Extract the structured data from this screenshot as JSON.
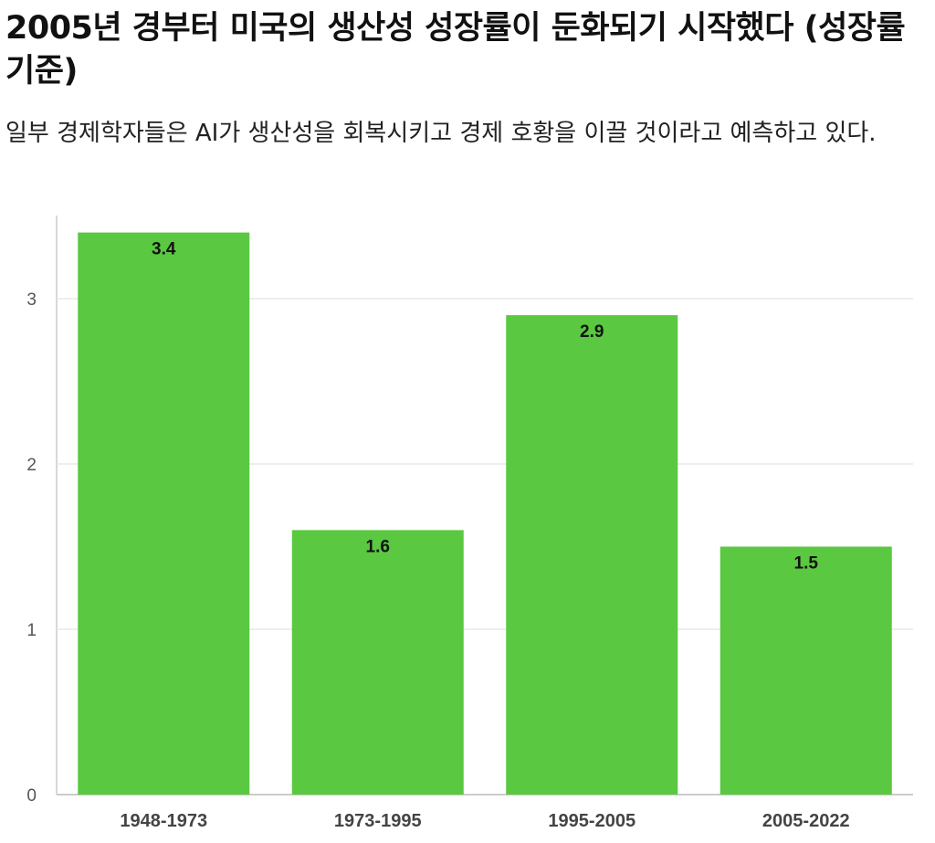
{
  "header": {
    "title": "2005년 경부터 미국의 생산성 성장률이 둔화되기 시작했다 (성장률 기준)",
    "subtitle": "일부 경제학자들은 AI가 생산성을 회복시키고 경제 호황을 이끌 것이라고 예측하고 있다."
  },
  "colors": {
    "bar": "#5ac840",
    "grid": "#e8e8e8",
    "axis": "#cccccc"
  },
  "chart_data": {
    "type": "bar",
    "categories": [
      "1948-1973",
      "1973-1995",
      "1995-2005",
      "2005-2022"
    ],
    "values": [
      3.4,
      1.6,
      2.9,
      1.5
    ],
    "value_labels": [
      "3.4",
      "1.6",
      "2.9",
      "1.5"
    ],
    "yticks": [
      0,
      1,
      2,
      3
    ],
    "ylim": [
      0,
      3.5
    ],
    "grid": true,
    "title": "2005년 경부터 미국의 생산성 성장률이 둔화되기 시작했다 (성장률 기준)",
    "xlabel": "",
    "ylabel": ""
  }
}
